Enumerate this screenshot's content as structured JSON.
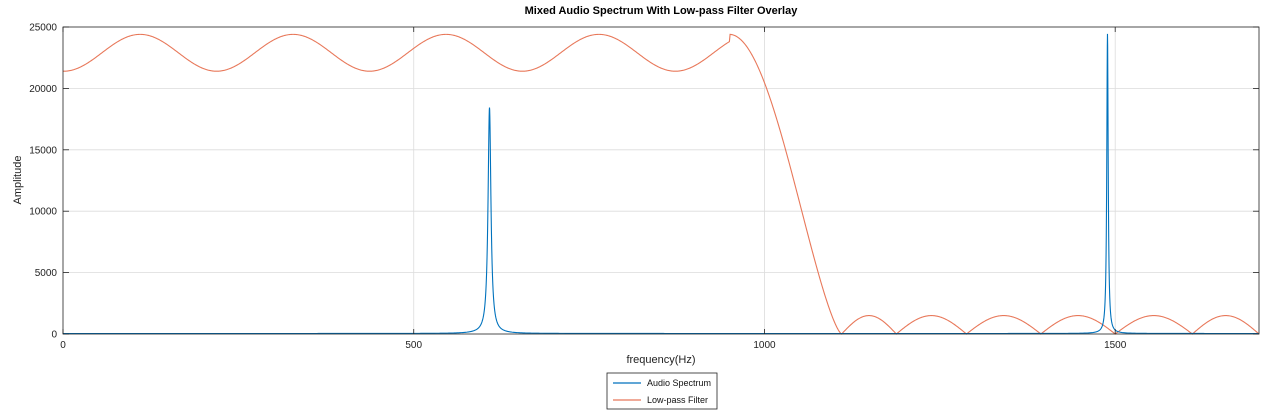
{
  "chart_data": {
    "type": "line",
    "title": "Mixed Audio Spectrum With Low-pass Filter Overlay",
    "xlabel": "frequency(Hz)",
    "ylabel": "Amplitude",
    "xlim": [
      0,
      1705
    ],
    "ylim": [
      0,
      25000
    ],
    "xticks": [
      0,
      500,
      1000,
      1500
    ],
    "yticks": [
      0,
      5000,
      10000,
      15000,
      20000,
      25000
    ],
    "grid": true,
    "legend_position": "bottom-center",
    "series": [
      {
        "name": "Audio Spectrum",
        "color": "#0072BD",
        "peaks": [
          {
            "x": 608,
            "y": 18400,
            "width": 2.5
          },
          {
            "x": 1489,
            "y": 24400,
            "width": 1.2
          }
        ],
        "baseline": 40
      },
      {
        "name": "Low-pass Filter",
        "color": "#E8785A",
        "passband": {
          "x_start": 0,
          "x_end": 950,
          "min": 21400,
          "max": 24400,
          "ripple_period": 218,
          "first_peak": 110
        },
        "transition": {
          "x_start": 950,
          "x_end": 1110,
          "y_start": 24400,
          "y_end": 0
        },
        "stopband": {
          "x_start": 1110,
          "x_end": 1705,
          "ripple_peak": 1500,
          "nulls": [
            1110,
            1188,
            1288,
            1394,
            1500,
            1610,
            1705
          ]
        }
      }
    ]
  }
}
